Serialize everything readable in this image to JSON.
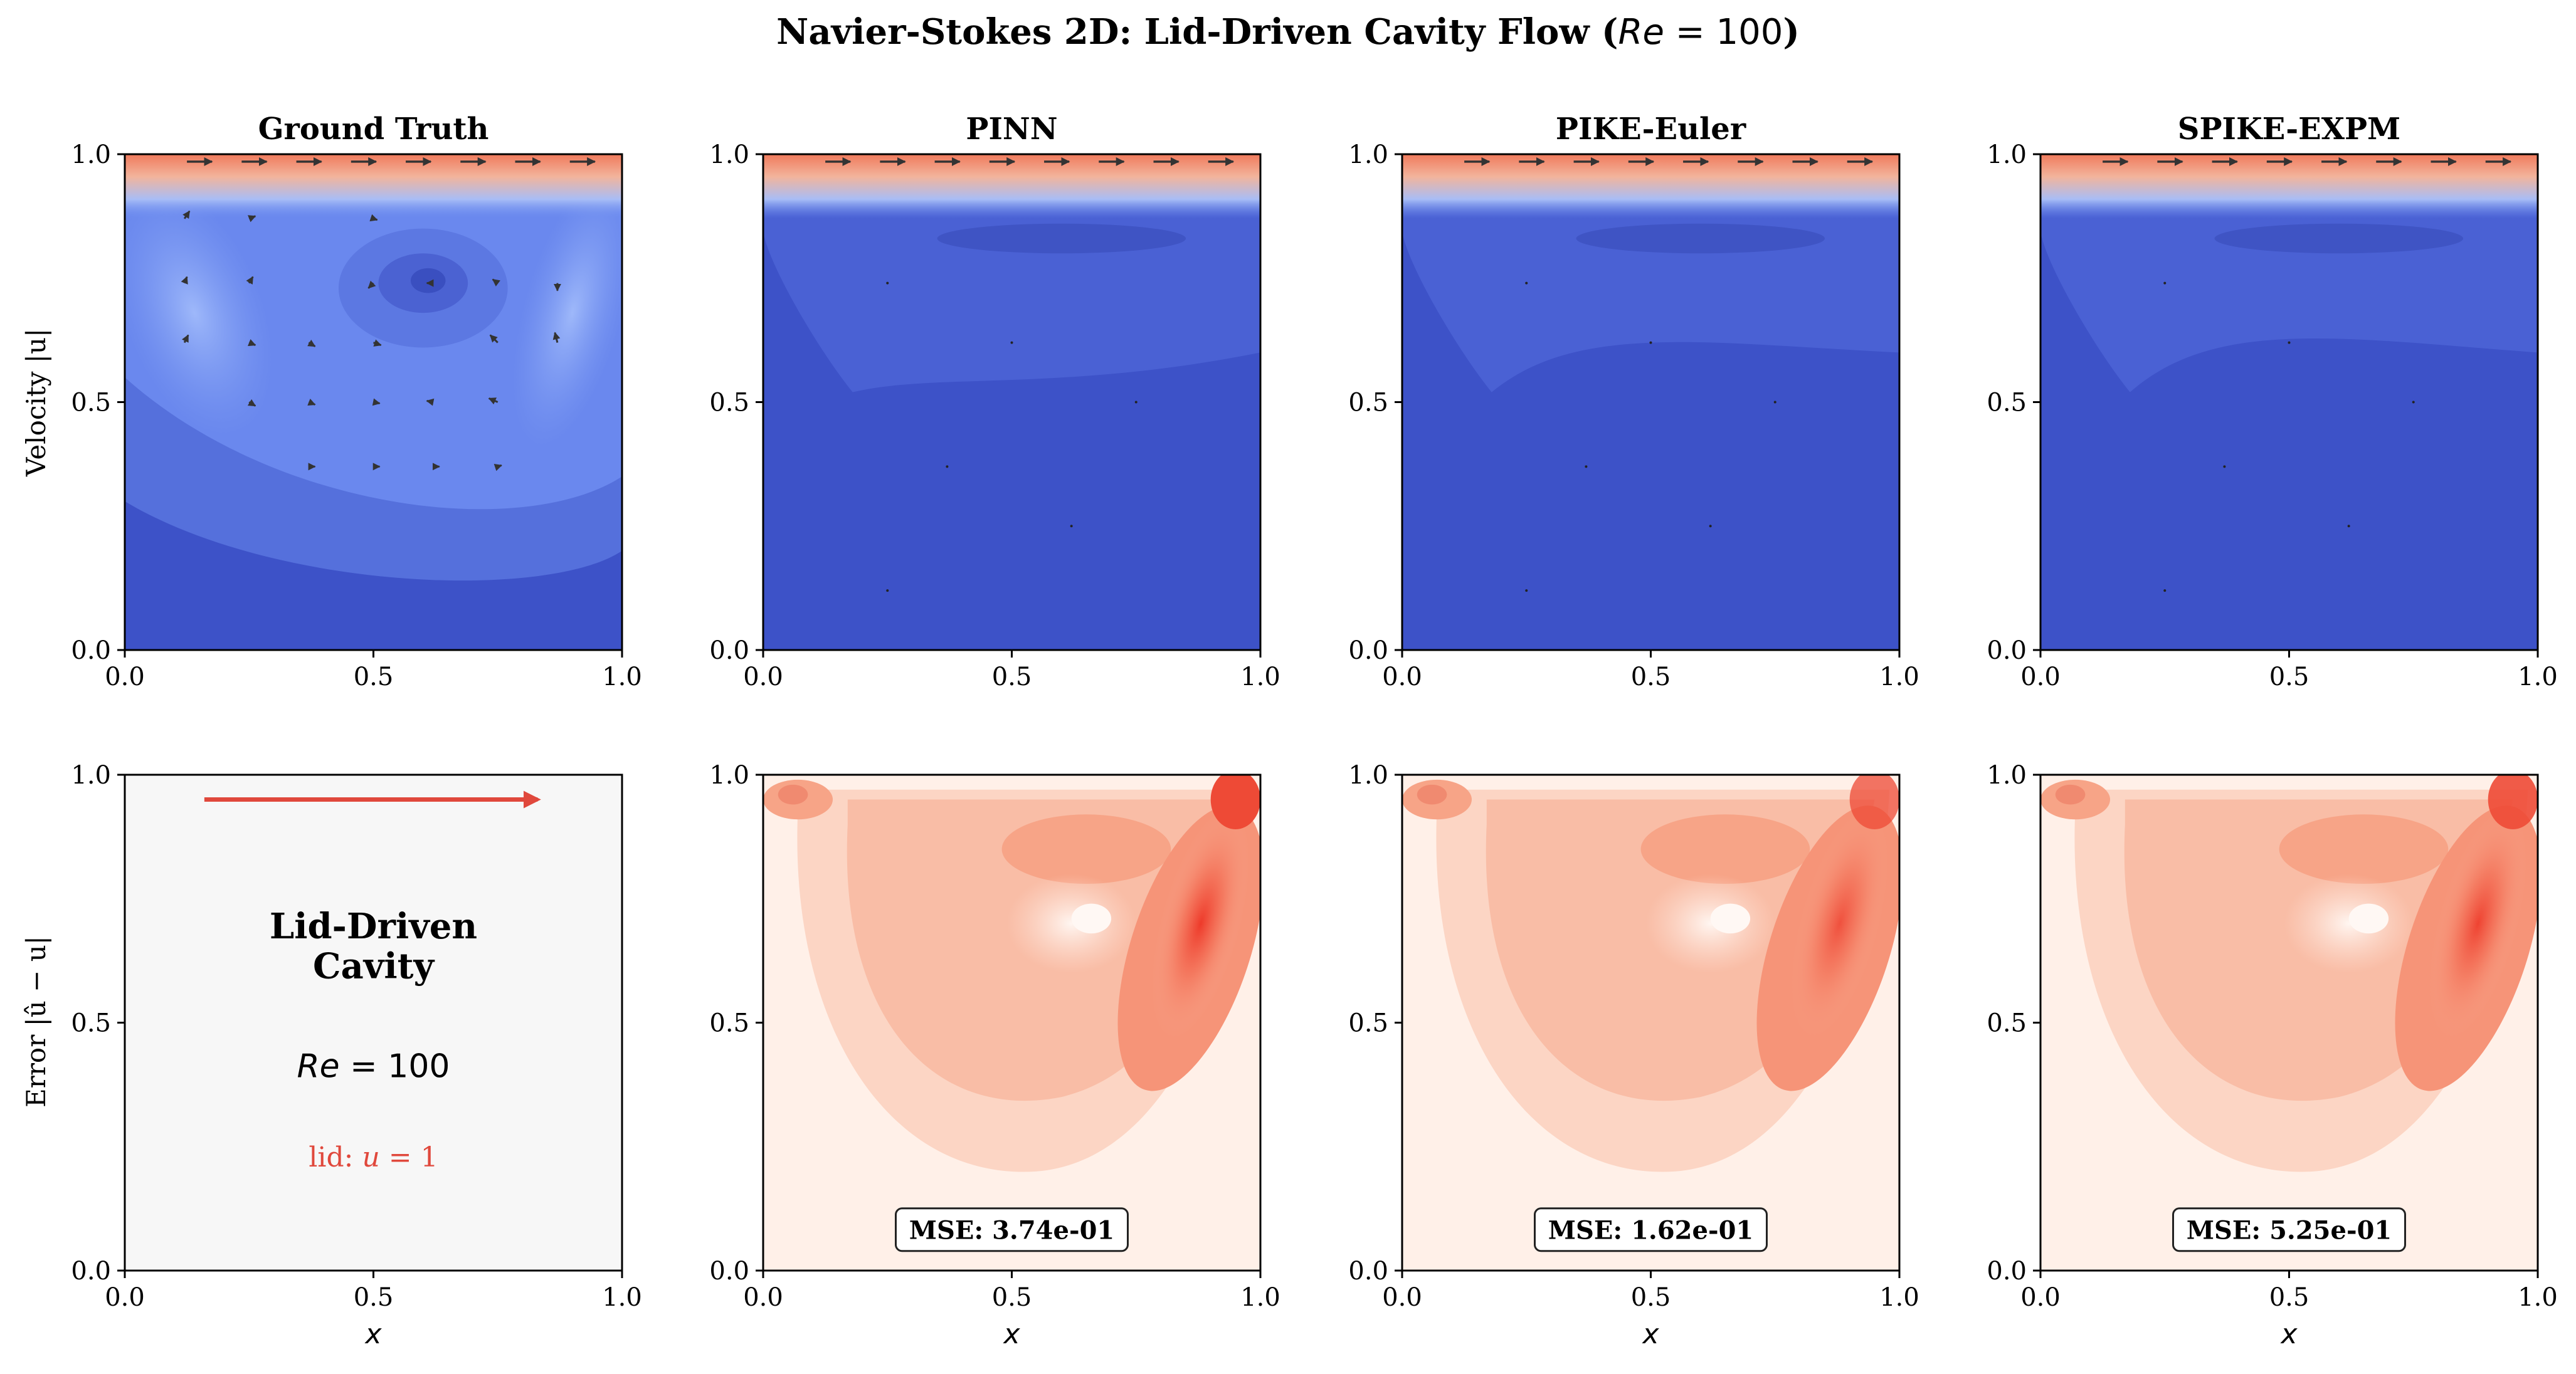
{
  "title": "Navier-Stokes 2D: Lid-Driven Cavity Flow (Re = 100)",
  "title_parts": {
    "prefix": "Navier-Stokes 2D: Lid-Driven Cavity Flow (",
    "re_symbol": "Re",
    "re_eq": " = 100",
    "suffix": ")"
  },
  "row_labels": {
    "top": "Velocity |u|",
    "bottom": "Error |û − u|"
  },
  "colors": {
    "velocity_low": "#3d52c8",
    "velocity_mid": "#6e8ff0",
    "velocity_high": "#f08868",
    "error_low": "#fff0e8",
    "error_high": "#f03c2c",
    "arrow": "#333333",
    "lid_arrow": "#e0483c",
    "info_panel_bg": "#f7f7f7"
  },
  "info_panel": {
    "heading_line1": "Lid-Driven",
    "heading_line2": "Cavity",
    "re_symbol": "Re",
    "re_value": " = 100",
    "lid_prefix": "lid: ",
    "lid_var": "u",
    "lid_value": " = 1"
  },
  "chart_data": [
    {
      "type": "heatmap",
      "panel": "velocity",
      "title": "Ground Truth",
      "xlabel": "",
      "ylabel": "Velocity |u|",
      "xlim": [
        0.0,
        1.0
      ],
      "ylim": [
        0.0,
        1.0
      ],
      "xticks": [
        "0.0",
        "0.5",
        "1.0"
      ],
      "yticks": [
        "0.0",
        "0.5",
        "1.0"
      ],
      "description_levels": "lid layer near y=1 with magnitude ~1.0; primary vortex centered near (0.62, 0.74); wall jet along x≈0.9"
    },
    {
      "type": "heatmap",
      "panel": "velocity",
      "title": "PINN",
      "xlim": [
        0.0,
        1.0
      ],
      "ylim": [
        0.0,
        1.0
      ],
      "xticks": [
        "0.0",
        "0.5",
        "1.0"
      ],
      "yticks": [
        "0.0",
        "0.5",
        "1.0"
      ]
    },
    {
      "type": "heatmap",
      "panel": "velocity",
      "title": "PIKE-Euler",
      "xlim": [
        0.0,
        1.0
      ],
      "ylim": [
        0.0,
        1.0
      ],
      "xticks": [
        "0.0",
        "0.5",
        "1.0"
      ],
      "yticks": [
        "0.0",
        "0.5",
        "1.0"
      ]
    },
    {
      "type": "heatmap",
      "panel": "velocity",
      "title": "SPIKE-EXPM",
      "xlim": [
        0.0,
        1.0
      ],
      "ylim": [
        0.0,
        1.0
      ],
      "xticks": [
        "0.0",
        "0.5",
        "1.0"
      ],
      "yticks": [
        "0.0",
        "0.5",
        "1.0"
      ]
    },
    {
      "type": "heatmap",
      "panel": "info",
      "xlabel": "x",
      "ylabel": "Error |û − u|",
      "xlim": [
        0.0,
        1.0
      ],
      "ylim": [
        0.0,
        1.0
      ],
      "xticks": [
        "0.0",
        "0.5",
        "1.0"
      ],
      "yticks": [
        "0.0",
        "0.5",
        "1.0"
      ]
    },
    {
      "type": "heatmap",
      "panel": "error",
      "xlabel": "x",
      "xlim": [
        0.0,
        1.0
      ],
      "ylim": [
        0.0,
        1.0
      ],
      "xticks": [
        "0.0",
        "0.5",
        "1.0"
      ],
      "yticks": [
        "0.0",
        "0.5",
        "1.0"
      ],
      "annotation": "MSE: 3.74e-01",
      "mse": 0.374
    },
    {
      "type": "heatmap",
      "panel": "error",
      "xlabel": "x",
      "xlim": [
        0.0,
        1.0
      ],
      "ylim": [
        0.0,
        1.0
      ],
      "xticks": [
        "0.0",
        "0.5",
        "1.0"
      ],
      "yticks": [
        "0.0",
        "0.5",
        "1.0"
      ],
      "annotation": "MSE: 1.62e-01",
      "mse": 0.162
    },
    {
      "type": "heatmap",
      "panel": "error",
      "xlabel": "x",
      "xlim": [
        0.0,
        1.0
      ],
      "ylim": [
        0.0,
        1.0
      ],
      "xticks": [
        "0.0",
        "0.5",
        "1.0"
      ],
      "yticks": [
        "0.0",
        "0.5",
        "1.0"
      ],
      "annotation": "MSE: 5.25e-01",
      "mse": 0.525
    }
  ]
}
